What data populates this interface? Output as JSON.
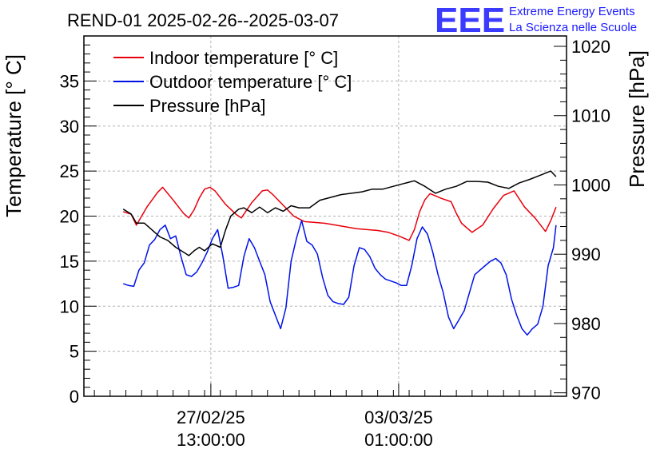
{
  "chart_data": {
    "type": "line",
    "title": "REND-01 2025-02-26--2025-03-07",
    "logo": {
      "mark": "EEE",
      "line1": "Extreme Energy Events",
      "line2": "La Scienza nelle Scuole",
      "color": "#1a1aff"
    },
    "ylabel": "Temperature [° C]",
    "y2label": "Pressure [hPa]",
    "ylim": [
      0,
      40
    ],
    "y2lim": [
      969.5,
      1021.5
    ],
    "yticks": [
      0,
      5,
      10,
      15,
      20,
      25,
      30,
      35
    ],
    "y2ticks": [
      970,
      980,
      990,
      1000,
      1010,
      1020
    ],
    "xlim": [
      0,
      9.2
    ],
    "xticks": [
      {
        "x": 2.42,
        "line1": "27/02/25",
        "line2": "13:00:00"
      },
      {
        "x": 6.0,
        "line1": "03/03/25",
        "line2": "01:00:00"
      }
    ],
    "grid": true,
    "legend_position": "top-left",
    "series": [
      {
        "name": "Indoor temperature [° C]",
        "axis": "left",
        "color": "#e8000b",
        "x": [
          0.75,
          0.9,
          1.0,
          1.2,
          1.4,
          1.5,
          1.7,
          1.9,
          2.0,
          2.1,
          2.2,
          2.3,
          2.4,
          2.5,
          2.7,
          2.9,
          3.0,
          3.2,
          3.4,
          3.5,
          3.6,
          3.8,
          3.9,
          4.0,
          4.2,
          4.4,
          4.6,
          4.8,
          5.0,
          5.2,
          5.4,
          5.6,
          5.8,
          6.0,
          6.2,
          6.3,
          6.4,
          6.5,
          6.6,
          6.8,
          7.0,
          7.1,
          7.2,
          7.4,
          7.6,
          7.8,
          8.0,
          8.2,
          8.4,
          8.6,
          8.8,
          8.9,
          9.0
        ],
        "y": [
          20.5,
          20.2,
          19.0,
          21.0,
          22.6,
          23.2,
          21.8,
          20.3,
          19.8,
          20.7,
          22.0,
          23.0,
          23.2,
          22.8,
          21.3,
          20.2,
          19.8,
          21.5,
          22.8,
          22.9,
          22.4,
          21.2,
          20.6,
          20.0,
          19.4,
          19.3,
          19.2,
          19.0,
          18.8,
          18.6,
          18.5,
          18.4,
          18.2,
          17.8,
          17.3,
          18.5,
          20.5,
          21.8,
          22.5,
          22.0,
          21.6,
          20.3,
          19.2,
          18.2,
          19.0,
          20.8,
          22.3,
          22.8,
          21.0,
          19.8,
          18.3,
          19.5,
          21.0
        ]
      },
      {
        "name": "Outdoor temperature [° C]",
        "axis": "left",
        "color": "#0012e8",
        "x": [
          0.75,
          0.85,
          0.95,
          1.05,
          1.15,
          1.25,
          1.35,
          1.45,
          1.55,
          1.65,
          1.75,
          1.85,
          1.95,
          2.05,
          2.15,
          2.25,
          2.35,
          2.45,
          2.55,
          2.65,
          2.75,
          2.85,
          2.95,
          3.05,
          3.15,
          3.25,
          3.35,
          3.45,
          3.55,
          3.65,
          3.75,
          3.85,
          3.95,
          4.05,
          4.15,
          4.25,
          4.35,
          4.45,
          4.55,
          4.65,
          4.75,
          4.85,
          4.95,
          5.05,
          5.15,
          5.25,
          5.35,
          5.45,
          5.55,
          5.65,
          5.75,
          5.85,
          5.95,
          6.05,
          6.15,
          6.25,
          6.35,
          6.45,
          6.55,
          6.65,
          6.75,
          6.85,
          6.95,
          7.05,
          7.15,
          7.25,
          7.35,
          7.45,
          7.55,
          7.65,
          7.75,
          7.85,
          7.95,
          8.05,
          8.15,
          8.25,
          8.35,
          8.45,
          8.55,
          8.65,
          8.75,
          8.85,
          8.95,
          9.0
        ],
        "y": [
          12.5,
          12.3,
          12.2,
          14.0,
          14.8,
          16.8,
          17.4,
          18.5,
          19.0,
          17.5,
          17.8,
          15.5,
          13.5,
          13.3,
          13.8,
          14.8,
          16.0,
          17.5,
          18.5,
          15.5,
          12.0,
          12.1,
          12.3,
          15.5,
          17.5,
          16.5,
          15.0,
          13.5,
          10.5,
          9.0,
          7.5,
          9.8,
          15.0,
          17.5,
          19.5,
          17.2,
          16.8,
          15.8,
          13.2,
          11.2,
          10.5,
          10.3,
          10.2,
          11.0,
          14.5,
          16.5,
          16.3,
          15.5,
          14.2,
          13.5,
          13.0,
          12.8,
          12.6,
          12.3,
          12.3,
          14.5,
          17.5,
          18.8,
          18.0,
          16.0,
          13.5,
          11.5,
          8.8,
          7.5,
          8.5,
          9.5,
          11.5,
          13.5,
          14.0,
          14.5,
          15.0,
          15.3,
          14.8,
          13.5,
          10.8,
          9.0,
          7.5,
          6.8,
          7.5,
          8.0,
          10.0,
          14.5,
          16.5,
          19.0
        ]
      },
      {
        "name": "Pressure [hPa]",
        "axis": "right",
        "color": "#000000",
        "x": [
          0.75,
          0.9,
          1.0,
          1.15,
          1.3,
          1.45,
          1.6,
          1.75,
          1.9,
          2.0,
          2.1,
          2.2,
          2.3,
          2.45,
          2.6,
          2.7,
          2.8,
          2.95,
          3.05,
          3.2,
          3.35,
          3.5,
          3.65,
          3.8,
          3.95,
          4.1,
          4.3,
          4.5,
          4.7,
          4.9,
          5.1,
          5.3,
          5.5,
          5.7,
          5.9,
          6.1,
          6.3,
          6.5,
          6.7,
          6.9,
          7.1,
          7.3,
          7.5,
          7.7,
          7.9,
          8.1,
          8.3,
          8.5,
          8.7,
          8.9,
          9.0
        ],
        "y": [
          996.5,
          995.8,
          994.5,
          994.5,
          993.5,
          992.5,
          992.0,
          991.0,
          990.3,
          989.8,
          990.5,
          991.0,
          990.5,
          991.5,
          991.0,
          993.5,
          995.5,
          996.5,
          996.7,
          996.0,
          996.8,
          996.0,
          996.7,
          996.2,
          997.0,
          996.7,
          996.7,
          997.8,
          998.2,
          998.6,
          998.8,
          999.0,
          999.4,
          999.4,
          999.8,
          1000.2,
          1000.6,
          999.8,
          998.8,
          999.4,
          999.8,
          1000.5,
          1000.5,
          1000.4,
          999.8,
          999.5,
          1000.3,
          1000.8,
          1001.4,
          1002.0,
          1001.2
        ]
      }
    ]
  }
}
